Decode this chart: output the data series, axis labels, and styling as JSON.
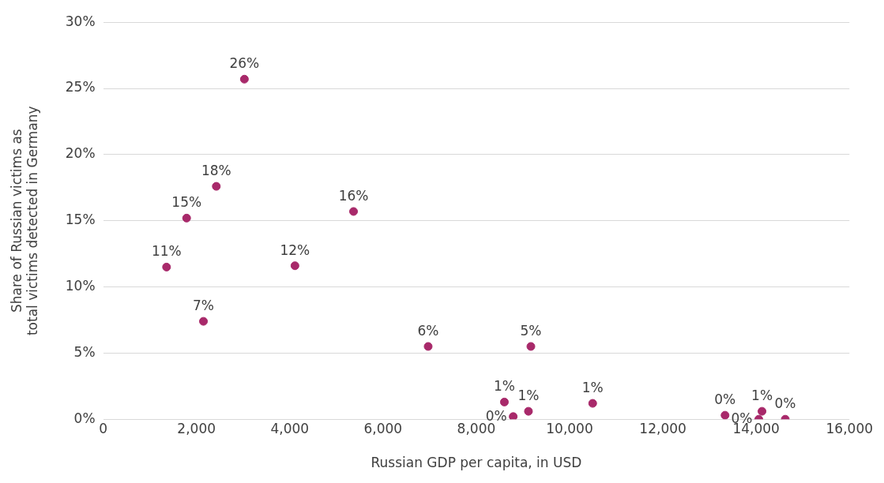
{
  "chart_data": {
    "type": "scatter",
    "xlabel": "Russian GDP per capita, in USD",
    "ylabel": "Share of Russian victims as total victims detected in Germany",
    "x": [
      1359,
      2150,
      1789,
      2426,
      3028,
      4112,
      5368,
      6968,
      9170,
      8602,
      8791,
      9118,
      10495,
      13333,
      14056,
      14125,
      14624
    ],
    "values": [
      11.5,
      7.4,
      15.2,
      17.6,
      25.7,
      11.6,
      15.7,
      5.5,
      5.5,
      1.3,
      0.2,
      0.6,
      1.2,
      0.3,
      0,
      0.6,
      0
    ],
    "value_labels": [
      "11%",
      "7%",
      "15%",
      "18%",
      "26%",
      "12%",
      "16%",
      "6%",
      "5%",
      "1%",
      "0%",
      "1%",
      "1%",
      "0%",
      "0%",
      "1%",
      "0%"
    ],
    "color": "#a8296a",
    "marker": "circle",
    "xlim": [
      0,
      16000
    ],
    "xticks": [
      {
        "value": 0,
        "label": "0"
      },
      {
        "value": 2000,
        "label": "2,000"
      },
      {
        "value": 4000,
        "label": "4,000"
      },
      {
        "value": 6000,
        "label": "6,000"
      },
      {
        "value": 8000,
        "label": "8,000"
      },
      {
        "value": 10000,
        "label": "10,000"
      },
      {
        "value": 12000,
        "label": "12,000"
      },
      {
        "value": 14000,
        "label": "14,000"
      },
      {
        "value": 16000,
        "label": "16,000"
      }
    ],
    "ylim": [
      0,
      30
    ],
    "yticks": [
      {
        "value": 0,
        "label": "0%"
      },
      {
        "value": 5,
        "label": "5%"
      },
      {
        "value": 10,
        "label": "10%"
      },
      {
        "value": 15,
        "label": "15%"
      },
      {
        "value": 20,
        "label": "20%"
      },
      {
        "value": 25,
        "label": "25%"
      },
      {
        "value": 30,
        "label": "30%"
      }
    ],
    "grid": "y",
    "legend": false
  }
}
